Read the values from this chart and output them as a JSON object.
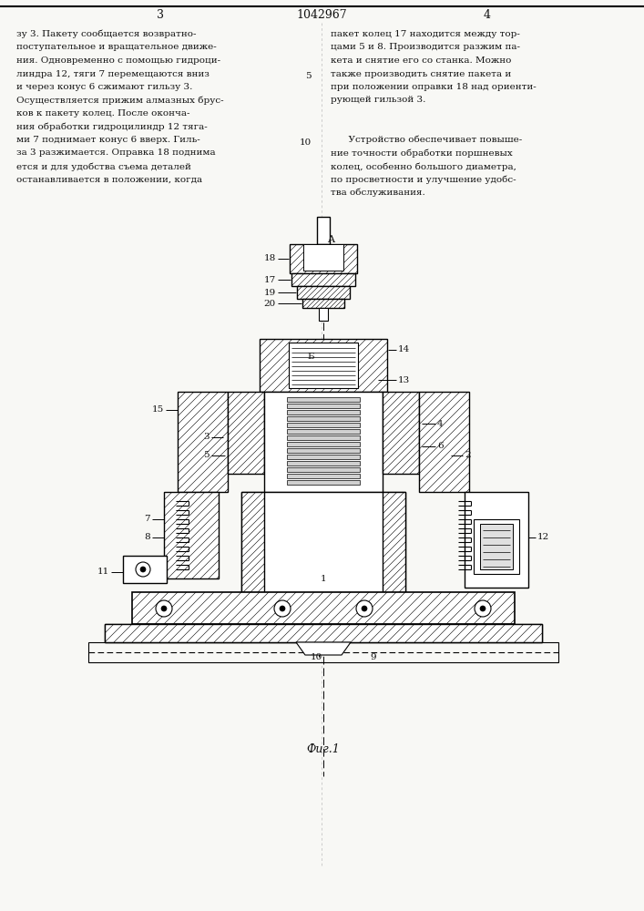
{
  "patent_number": "1042967",
  "page_left": "3",
  "page_right": "4",
  "bg_color": "#f8f8f5",
  "text_color": "#111111",
  "caption": "Фиг.1",
  "left_col_lines": [
    "зу 3. Пакету сообщается возвратно-",
    "поступательное и вращательное движе-",
    "ния. Одновременно с помощью гидроци-",
    "линдра 12, тяги 7 перемещаются вниз",
    "и через конус 6 сжимают гильзу 3.",
    "Осуществляется прижим алмазных брус-",
    "ков к пакету колец. После оконча-",
    "ния обработки гидроцилиндр 12 тяга-",
    "ми 7 поднимает конус 6 вверх. Гиль-",
    "за 3 разжимается. Оправка 18 поднима",
    "ется и для удобства съема деталей",
    "останавливается в положении, когда"
  ],
  "right_col_p1": [
    "пакет колец 17 находится между тор-",
    "цами 5 и 8. Производится разжим па-",
    "кета и снятие его со станка. Можно",
    "также производить снятие пакета и",
    "при положении оправки 18 над ориенти-",
    "рующей гильзой 3."
  ],
  "right_col_p2": [
    "      Устройство обеспечивает повыше-",
    "ние точности обработки поршневых",
    "колец, особенно большого диаметра,",
    "по просветности и улучшение удобс-",
    "тва обслуживания."
  ]
}
